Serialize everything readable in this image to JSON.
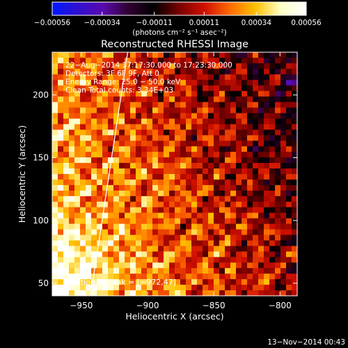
{
  "chart_data": {
    "type": "heatmap",
    "title": "Reconstructed RHESSI Image",
    "xlabel": "Heliocentric X (arcsec)",
    "ylabel": "Heliocentric Y (arcsec)",
    "xlim": [
      -972,
      -787
    ],
    "ylim": [
      40,
      234
    ],
    "x_ticks": [
      -950,
      -900,
      -850,
      -800
    ],
    "x_tick_labels": [
      "−950",
      "−900",
      "−850",
      "−800"
    ],
    "y_ticks": [
      50,
      100,
      150,
      200
    ],
    "y_tick_labels": [
      "50",
      "100",
      "150",
      "200"
    ],
    "colorbar": {
      "min": -0.00056,
      "max": 0.00056,
      "ticks": [
        -0.00056,
        -0.00034,
        -0.00011,
        0.00011,
        0.00034,
        0.00056
      ],
      "tick_labels": [
        "−0.00056",
        "−0.00034",
        "−0.00011",
        "0.00011",
        "0.00034",
        "0.00056"
      ],
      "units_label": "(photons cm⁻² s⁻¹ asec⁻²)",
      "colors": [
        "#0018ff",
        "#3010d0",
        "#5a0ab0",
        "#300030",
        "#000000",
        "#7a0000",
        "#d01000",
        "#ff6a00",
        "#ffc000",
        "#ffffc8",
        "#ffffff"
      ]
    },
    "annotations": [
      "22−Aug−2014 17:17:30.000 to 17:23:30.000",
      "Detectors: 3F 6F 9F, Att 0",
      "Energy Range: 25.0 − 50.0 keV",
      "Clean    Total counts: 3.34E+03"
    ],
    "peak_label": "Position of Peak = [−972,47]",
    "peak": {
      "x": -972,
      "y": 47
    },
    "limb_line": [
      {
        "x": -943,
        "y": 40
      },
      {
        "x": -915,
        "y": 234
      }
    ],
    "grid": false
  },
  "footer_date": "13−Nov−2014 00:43"
}
